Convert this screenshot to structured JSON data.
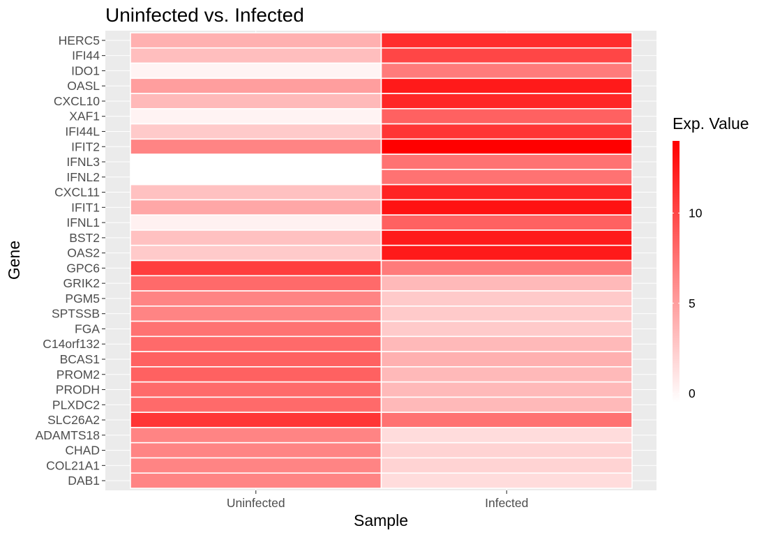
{
  "chart_data": {
    "type": "heatmap",
    "title": "Uninfected vs. Infected",
    "xlabel": "Sample",
    "ylabel": "Gene",
    "x_categories": [
      "Uninfected",
      "Infected"
    ],
    "y_categories": [
      "HERC5",
      "IFI44",
      "IDO1",
      "OASL",
      "CXCL10",
      "XAF1",
      "IFI44L",
      "IFIT2",
      "IFNL3",
      "IFNL2",
      "CXCL11",
      "IFIT1",
      "IFNL1",
      "BST2",
      "OAS2",
      "GPC6",
      "GRIK2",
      "PGM5",
      "SPTSSB",
      "FGA",
      "C14orf132",
      "BCAS1",
      "PROM2",
      "PRODH",
      "PLXDC2",
      "SLC26A2",
      "ADAMTS18",
      "CHAD",
      "COL21A1",
      "DAB1"
    ],
    "values": [
      [
        4.0,
        11.5
      ],
      [
        3.2,
        10.0
      ],
      [
        0.1,
        7.0
      ],
      [
        5.0,
        12.5
      ],
      [
        3.5,
        11.8
      ],
      [
        0.2,
        8.5
      ],
      [
        2.5,
        11.0
      ],
      [
        6.5,
        14.0
      ],
      [
        -0.5,
        7.5
      ],
      [
        -0.5,
        7.5
      ],
      [
        3.0,
        12.0
      ],
      [
        4.5,
        13.0
      ],
      [
        0.3,
        8.5
      ],
      [
        3.0,
        12.5
      ],
      [
        2.5,
        12.5
      ],
      [
        10.5,
        7.0
      ],
      [
        8.0,
        3.5
      ],
      [
        6.5,
        2.5
      ],
      [
        6.5,
        2.5
      ],
      [
        7.5,
        2.5
      ],
      [
        8.0,
        3.5
      ],
      [
        8.5,
        4.0
      ],
      [
        8.5,
        3.5
      ],
      [
        8.0,
        3.5
      ],
      [
        8.0,
        3.5
      ],
      [
        11.0,
        7.5
      ],
      [
        6.5,
        1.5
      ],
      [
        6.5,
        2.0
      ],
      [
        6.5,
        2.0
      ],
      [
        6.5,
        1.5
      ]
    ],
    "legend": {
      "title": "Exp. Value",
      "breaks": [
        0,
        5,
        10
      ],
      "break_labels": [
        "0",
        "5",
        "10"
      ],
      "range": [
        -0.5,
        14.0
      ],
      "low_color": "#ffffff",
      "high_color": "#ff0000",
      "position": "right"
    },
    "panel_background": "#ebebeb",
    "grid_color": "#ffffff",
    "tile_border_color": "#ffffff"
  }
}
